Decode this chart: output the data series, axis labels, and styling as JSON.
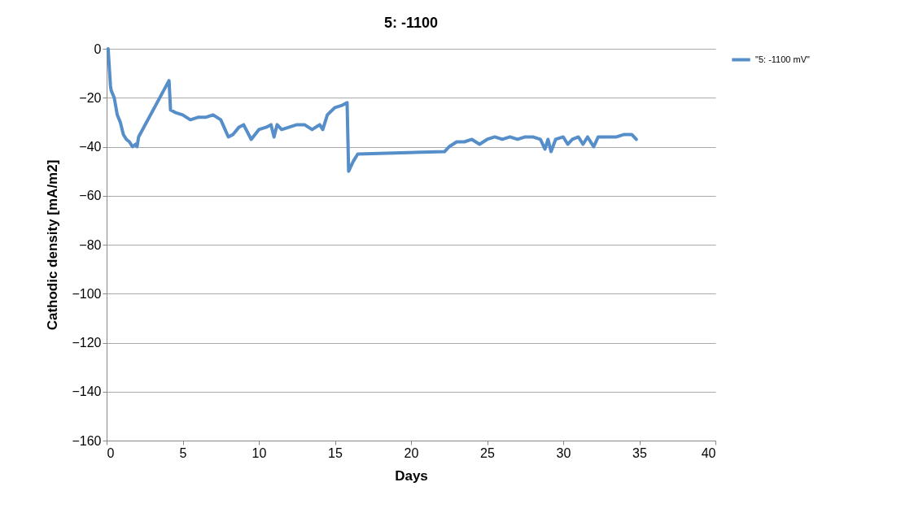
{
  "chart_data": {
    "type": "line",
    "title": "5: -1100",
    "xlabel": "Days",
    "ylabel": "Cathodic density [mA/m2]",
    "xlim": [
      0,
      40
    ],
    "xticks": [
      0,
      5,
      10,
      15,
      20,
      25,
      30,
      35,
      40
    ],
    "ylim": [
      -160,
      0
    ],
    "yticks": [
      -160,
      -140,
      -120,
      -100,
      -80,
      -60,
      -40,
      -20,
      0
    ],
    "grid": "y",
    "legend": "right",
    "marker": "none",
    "line_style": "solid",
    "series": [
      {
        "name": "\"5: -1100 mV\"",
        "color": "#558ec8",
        "x": [
          0.1,
          0.25,
          0.3,
          0.5,
          0.7,
          0.9,
          1.1,
          1.3,
          1.5,
          1.7,
          1.9,
          2.0,
          2.1,
          4.1,
          4.2,
          4.5,
          5,
          5.5,
          6,
          6.5,
          7,
          7.5,
          8,
          8.3,
          8.7,
          9,
          9.5,
          10,
          10.5,
          10.8,
          11,
          11.2,
          11.5,
          12,
          12.5,
          13,
          13.5,
          14,
          14.2,
          14.5,
          15,
          15.5,
          15.8,
          15.9,
          16.2,
          16.5,
          22.2,
          22.5,
          23,
          23.5,
          24,
          24.5,
          25,
          25.5,
          26,
          26.5,
          27,
          27.5,
          28,
          28.5,
          28.8,
          29,
          29.2,
          29.5,
          30,
          30.3,
          30.6,
          31,
          31.3,
          31.6,
          32,
          32.3,
          33,
          33.5,
          34,
          34.5,
          34.8
        ],
        "values": [
          0,
          -15,
          -17,
          -20,
          -27,
          -30,
          -35,
          -37,
          -38,
          -40,
          -39,
          -40,
          -36,
          -13,
          -25,
          -26,
          -27,
          -29,
          -28,
          -28,
          -27,
          -29,
          -36,
          -35,
          -32,
          -31,
          -37,
          -33,
          -32,
          -31,
          -36,
          -31,
          -33,
          -32,
          -31,
          -31,
          -33,
          -31,
          -33,
          -27,
          -24,
          -23,
          -22,
          -50,
          -46,
          -43,
          -42,
          -40,
          -38,
          -38,
          -37,
          -39,
          -37,
          -36,
          -37,
          -36,
          -37,
          -36,
          -36,
          -37,
          -41,
          -37,
          -42,
          -37,
          -36,
          -39,
          -37,
          -36,
          -39,
          -36,
          -40,
          -36,
          -36,
          -36,
          -35,
          -35,
          -37
        ]
      }
    ]
  }
}
